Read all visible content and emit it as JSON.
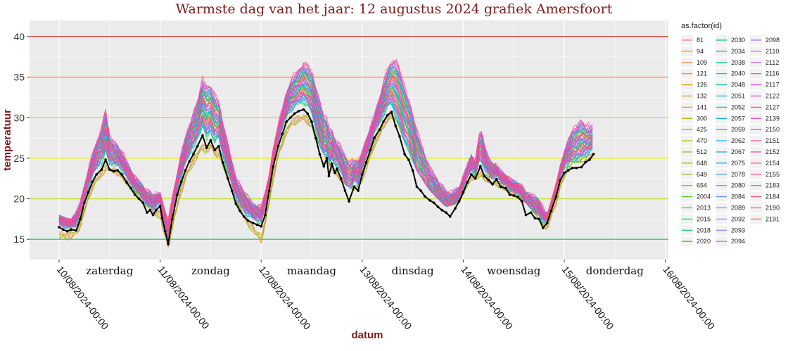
{
  "chart_data": {
    "type": "line",
    "title": "Warmste dag van het jaar: 12 augustus 2024 grafiek Amersfoort",
    "xlabel": "datum",
    "ylabel": "temperatuur",
    "xlim": [
      "2024-08-10T00:00",
      "2024-08-16T00:00"
    ],
    "ylim": [
      12.5,
      42
    ],
    "y_ticks": [
      15,
      20,
      25,
      30,
      35,
      40
    ],
    "x_ticks": [
      "10/08/2024-00:00",
      "11/08/2024-00:00",
      "12/08/2024-00:00",
      "13/08/2024-00:00",
      "14/08/2024-00:00",
      "15/08/2024-00:00",
      "16/08/2024-00:00"
    ],
    "day_labels": [
      {
        "label": "zaterdag",
        "day": 0.5
      },
      {
        "label": "zondag",
        "day": 1.5
      },
      {
        "label": "maandag",
        "day": 2.5
      },
      {
        "label": "dinsdag",
        "day": 3.5
      },
      {
        "label": "woensdag",
        "day": 4.5
      },
      {
        "label": "donderdag",
        "day": 5.5
      }
    ],
    "grid": true,
    "legend_position": "right",
    "legend_title": "as.factor(id)",
    "reference_lines": [
      {
        "y": 40,
        "color": "#d62728"
      },
      {
        "y": 35,
        "color": "#f0953a"
      },
      {
        "y": 30,
        "color": "#f2c94c"
      },
      {
        "y": 25,
        "color": "#eded3a"
      },
      {
        "y": 20,
        "color": "#c5dd3c"
      },
      {
        "y": 15,
        "color": "#2ecc71"
      }
    ],
    "highlight_series": {
      "color": "#000000",
      "points": [
        [
          0.0,
          16.5
        ],
        [
          0.04,
          16.2
        ],
        [
          0.08,
          16.0
        ],
        [
          0.12,
          16.2
        ],
        [
          0.17,
          16.1
        ],
        [
          0.21,
          17.5
        ],
        [
          0.25,
          19.5
        ],
        [
          0.29,
          20.8
        ],
        [
          0.33,
          22.1
        ],
        [
          0.37,
          23.0
        ],
        [
          0.42,
          23.6
        ],
        [
          0.46,
          24.8
        ],
        [
          0.5,
          23.6
        ],
        [
          0.54,
          23.4
        ],
        [
          0.58,
          23.5
        ],
        [
          0.62,
          23.0
        ],
        [
          0.67,
          22.0
        ],
        [
          0.71,
          21.3
        ],
        [
          0.75,
          20.5
        ],
        [
          0.79,
          20.0
        ],
        [
          0.83,
          19.5
        ],
        [
          0.87,
          18.3
        ],
        [
          0.9,
          18.6
        ],
        [
          0.93,
          18.0
        ],
        [
          0.96,
          18.6
        ],
        [
          1.0,
          19.1
        ],
        [
          1.02,
          17.6
        ],
        [
          1.05,
          16.0
        ],
        [
          1.08,
          14.4
        ],
        [
          1.12,
          17.5
        ],
        [
          1.17,
          20.5
        ],
        [
          1.21,
          22.1
        ],
        [
          1.25,
          23.5
        ],
        [
          1.29,
          24.6
        ],
        [
          1.33,
          25.5
        ],
        [
          1.37,
          26.5
        ],
        [
          1.42,
          27.8
        ],
        [
          1.46,
          26.3
        ],
        [
          1.5,
          27.2
        ],
        [
          1.54,
          26.0
        ],
        [
          1.58,
          26.5
        ],
        [
          1.62,
          24.5
        ],
        [
          1.67,
          22.5
        ],
        [
          1.71,
          21.0
        ],
        [
          1.75,
          19.4
        ],
        [
          1.79,
          18.5
        ],
        [
          1.83,
          17.8
        ],
        [
          1.87,
          17.3
        ],
        [
          1.92,
          17.0
        ],
        [
          1.96,
          16.8
        ],
        [
          2.0,
          16.6
        ],
        [
          2.04,
          18.0
        ],
        [
          2.08,
          21.0
        ],
        [
          2.12,
          24.0
        ],
        [
          2.17,
          26.5
        ],
        [
          2.21,
          28.0
        ],
        [
          2.25,
          29.5
        ],
        [
          2.29,
          30.0
        ],
        [
          2.33,
          30.5
        ],
        [
          2.37,
          30.8
        ],
        [
          2.42,
          31.0
        ],
        [
          2.46,
          30.5
        ],
        [
          2.5,
          29.5
        ],
        [
          2.54,
          27.5
        ],
        [
          2.58,
          25.5
        ],
        [
          2.62,
          24.0
        ],
        [
          2.65,
          25.0
        ],
        [
          2.67,
          22.8
        ],
        [
          2.7,
          24.3
        ],
        [
          2.73,
          23.2
        ],
        [
          2.75,
          23.7
        ],
        [
          2.79,
          22.5
        ],
        [
          2.83,
          21.0
        ],
        [
          2.87,
          19.7
        ],
        [
          2.92,
          21.5
        ],
        [
          2.96,
          21.0
        ],
        [
          3.0,
          23.0
        ],
        [
          3.04,
          24.5
        ],
        [
          3.08,
          26.0
        ],
        [
          3.12,
          27.5
        ],
        [
          3.17,
          28.5
        ],
        [
          3.21,
          29.5
        ],
        [
          3.25,
          30.3
        ],
        [
          3.29,
          30.7
        ],
        [
          3.33,
          29.0
        ],
        [
          3.37,
          27.7
        ],
        [
          3.42,
          25.5
        ],
        [
          3.46,
          24.8
        ],
        [
          3.5,
          23.5
        ],
        [
          3.54,
          21.5
        ],
        [
          3.58,
          21.0
        ],
        [
          3.62,
          20.3
        ],
        [
          3.67,
          19.8
        ],
        [
          3.71,
          19.5
        ],
        [
          3.75,
          19.0
        ],
        [
          3.79,
          18.6
        ],
        [
          3.83,
          18.3
        ],
        [
          3.87,
          17.8
        ],
        [
          3.92,
          18.8
        ],
        [
          3.96,
          19.7
        ],
        [
          4.0,
          20.8
        ],
        [
          4.04,
          22.0
        ],
        [
          4.08,
          23.0
        ],
        [
          4.12,
          22.5
        ],
        [
          4.17,
          24.0
        ],
        [
          4.21,
          22.8
        ],
        [
          4.25,
          22.3
        ],
        [
          4.29,
          21.8
        ],
        [
          4.33,
          22.4
        ],
        [
          4.37,
          21.5
        ],
        [
          4.42,
          21.3
        ],
        [
          4.46,
          20.5
        ],
        [
          4.5,
          20.4
        ],
        [
          4.54,
          20.2
        ],
        [
          4.58,
          19.7
        ],
        [
          4.62,
          18.0
        ],
        [
          4.67,
          18.3
        ],
        [
          4.71,
          17.6
        ],
        [
          4.75,
          17.5
        ],
        [
          4.79,
          16.4
        ],
        [
          4.83,
          17.0
        ],
        [
          4.87,
          18.5
        ],
        [
          4.92,
          20.3
        ],
        [
          4.96,
          22.3
        ],
        [
          5.0,
          23.2
        ],
        [
          5.04,
          23.5
        ],
        [
          5.08,
          23.8
        ],
        [
          5.12,
          23.8
        ],
        [
          5.17,
          23.9
        ],
        [
          5.21,
          24.5
        ],
        [
          5.25,
          24.8
        ],
        [
          5.29,
          25.5
        ]
      ]
    },
    "envelope": {
      "description_mode": "many station series",
      "upper": [
        [
          0.0,
          18.0
        ],
        [
          0.12,
          17.5
        ],
        [
          0.21,
          19.8
        ],
        [
          0.33,
          26.5
        ],
        [
          0.42,
          30.5
        ],
        [
          0.46,
          33.2
        ],
        [
          0.5,
          29.0
        ],
        [
          0.62,
          26.5
        ],
        [
          0.75,
          23.0
        ],
        [
          0.92,
          21.0
        ],
        [
          1.0,
          20.8
        ],
        [
          1.08,
          18.0
        ],
        [
          1.17,
          24.0
        ],
        [
          1.25,
          29.0
        ],
        [
          1.37,
          34.0
        ],
        [
          1.42,
          37.3
        ],
        [
          1.5,
          36.5
        ],
        [
          1.58,
          34.0
        ],
        [
          1.67,
          28.0
        ],
        [
          1.75,
          23.5
        ],
        [
          1.92,
          19.8
        ],
        [
          2.0,
          19.5
        ],
        [
          2.08,
          23.5
        ],
        [
          2.17,
          30.0
        ],
        [
          2.29,
          36.0
        ],
        [
          2.42,
          38.8
        ],
        [
          2.5,
          38.0
        ],
        [
          2.62,
          32.5
        ],
        [
          2.75,
          28.0
        ],
        [
          2.92,
          25.5
        ],
        [
          3.0,
          26.5
        ],
        [
          3.12,
          31.0
        ],
        [
          3.25,
          38.0
        ],
        [
          3.33,
          40.5
        ],
        [
          3.42,
          37.0
        ],
        [
          3.54,
          31.0
        ],
        [
          3.67,
          25.0
        ],
        [
          3.83,
          21.5
        ],
        [
          3.96,
          21.5
        ],
        [
          4.04,
          24.5
        ],
        [
          4.08,
          26.0
        ],
        [
          4.12,
          25.0
        ],
        [
          4.17,
          30.5
        ],
        [
          4.25,
          25.5
        ],
        [
          4.42,
          23.0
        ],
        [
          4.62,
          21.5
        ],
        [
          4.75,
          20.5
        ],
        [
          4.83,
          18.0
        ],
        [
          4.92,
          22.0
        ],
        [
          5.0,
          26.5
        ],
        [
          5.08,
          30.0
        ],
        [
          5.17,
          31.8
        ],
        [
          5.21,
          30.5
        ],
        [
          5.29,
          30.0
        ]
      ],
      "lower": [
        [
          0.0,
          14.6
        ],
        [
          0.12,
          15.0
        ],
        [
          0.21,
          16.0
        ],
        [
          0.33,
          21.0
        ],
        [
          0.42,
          22.5
        ],
        [
          0.5,
          23.5
        ],
        [
          0.62,
          22.5
        ],
        [
          0.75,
          20.5
        ],
        [
          0.92,
          18.5
        ],
        [
          1.0,
          17.0
        ],
        [
          1.08,
          14.0
        ],
        [
          1.17,
          18.0
        ],
        [
          1.25,
          22.0
        ],
        [
          1.37,
          24.5
        ],
        [
          1.5,
          26.0
        ],
        [
          1.62,
          24.0
        ],
        [
          1.75,
          19.5
        ],
        [
          1.92,
          15.5
        ],
        [
          2.0,
          13.5
        ],
        [
          2.08,
          18.5
        ],
        [
          2.17,
          24.5
        ],
        [
          2.29,
          28.5
        ],
        [
          2.42,
          29.0
        ],
        [
          2.5,
          28.5
        ],
        [
          2.62,
          25.5
        ],
        [
          2.75,
          22.5
        ],
        [
          2.92,
          21.0
        ],
        [
          3.0,
          22.0
        ],
        [
          3.12,
          26.0
        ],
        [
          3.25,
          29.5
        ],
        [
          3.33,
          30.0
        ],
        [
          3.42,
          27.0
        ],
        [
          3.54,
          23.5
        ],
        [
          3.67,
          21.0
        ],
        [
          3.83,
          19.0
        ],
        [
          3.96,
          19.5
        ],
        [
          4.04,
          21.5
        ],
        [
          4.12,
          22.5
        ],
        [
          4.25,
          22.0
        ],
        [
          4.42,
          21.0
        ],
        [
          4.62,
          19.5
        ],
        [
          4.75,
          17.5
        ],
        [
          4.83,
          16.0
        ],
        [
          4.92,
          19.0
        ],
        [
          5.0,
          22.5
        ],
        [
          5.08,
          24.5
        ],
        [
          5.17,
          24.5
        ],
        [
          5.29,
          25.0
        ]
      ]
    },
    "legend_columns": [
      [
        {
          "id": "81",
          "color": "#f8766d"
        },
        {
          "id": "94",
          "color": "#f57c57"
        },
        {
          "id": "109",
          "color": "#f08441"
        },
        {
          "id": "121",
          "color": "#ea8b2b"
        },
        {
          "id": "126",
          "color": "#e39218"
        },
        {
          "id": "132",
          "color": "#da9810"
        },
        {
          "id": "141",
          "color": "#d09e0f"
        },
        {
          "id": "300",
          "color": "#c6a40d"
        },
        {
          "id": "425",
          "color": "#bbaa0c"
        },
        {
          "id": "470",
          "color": "#afaf0b"
        },
        {
          "id": "512",
          "color": "#a2b40a"
        },
        {
          "id": "648",
          "color": "#94b80d"
        },
        {
          "id": "649",
          "color": "#84bc12"
        },
        {
          "id": "654",
          "color": "#72c01b"
        },
        {
          "id": "2004",
          "color": "#5cc326"
        },
        {
          "id": "2013",
          "color": "#3fc633"
        },
        {
          "id": "2015",
          "color": "#14c840"
        },
        {
          "id": "2018",
          "color": "#00ca4e"
        },
        {
          "id": "2020",
          "color": "#00cb5d"
        }
      ],
      [
        {
          "id": "2030",
          "color": "#00c08b"
        },
        {
          "id": "2034",
          "color": "#00bf98"
        },
        {
          "id": "2038",
          "color": "#00bea4"
        },
        {
          "id": "2040",
          "color": "#00bdaf"
        },
        {
          "id": "2048",
          "color": "#00bbba"
        },
        {
          "id": "2051",
          "color": "#00b9c4"
        },
        {
          "id": "2052",
          "color": "#00b6ce"
        },
        {
          "id": "2057",
          "color": "#00b3d7"
        },
        {
          "id": "2059",
          "color": "#00b0df"
        },
        {
          "id": "2062",
          "color": "#00ace6"
        },
        {
          "id": "2067",
          "color": "#00a8ec"
        },
        {
          "id": "2075",
          "color": "#14a3f1"
        },
        {
          "id": "2078",
          "color": "#359ef5"
        },
        {
          "id": "2080",
          "color": "#4b98f8"
        },
        {
          "id": "2084",
          "color": "#5e92fa"
        },
        {
          "id": "2089",
          "color": "#708bfb"
        },
        {
          "id": "2092",
          "color": "#8083fb"
        },
        {
          "id": "2093",
          "color": "#8f7bfa"
        },
        {
          "id": "2094",
          "color": "#9d73f8"
        }
      ],
      [
        {
          "id": "2098",
          "color": "#a96af5"
        },
        {
          "id": "2110",
          "color": "#b462f1"
        },
        {
          "id": "2112",
          "color": "#bf5aec"
        },
        {
          "id": "2116",
          "color": "#c853e6"
        },
        {
          "id": "2117",
          "color": "#d14cdf"
        },
        {
          "id": "2122",
          "color": "#d847d7"
        },
        {
          "id": "2127",
          "color": "#df43ce"
        },
        {
          "id": "2139",
          "color": "#e540c4"
        },
        {
          "id": "2150",
          "color": "#ea3fba"
        },
        {
          "id": "2151",
          "color": "#ee3faf"
        },
        {
          "id": "2152",
          "color": "#f141a4"
        },
        {
          "id": "2154",
          "color": "#f44498"
        },
        {
          "id": "2155",
          "color": "#f6478c"
        },
        {
          "id": "2183",
          "color": "#f74b80"
        },
        {
          "id": "2184",
          "color": "#f85074"
        },
        {
          "id": "2190",
          "color": "#f85568"
        },
        {
          "id": "2191",
          "color": "#f85b5d"
        }
      ]
    ]
  }
}
